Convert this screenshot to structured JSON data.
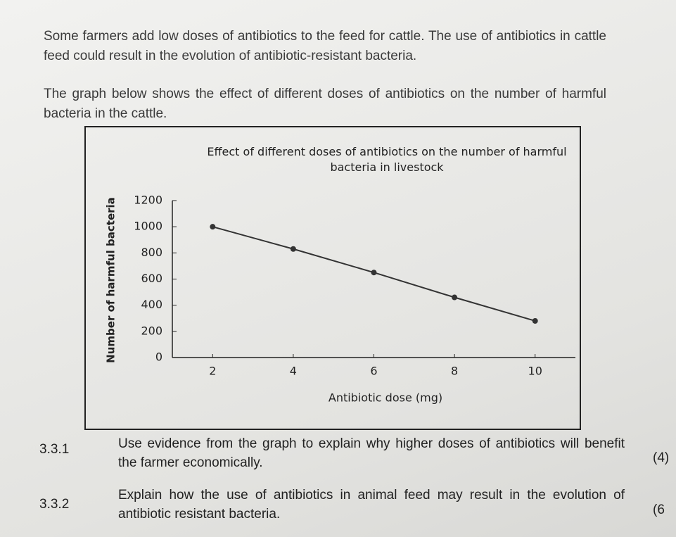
{
  "paragraphs": [
    "Some farmers add low doses of antibiotics to the feed for cattle. The use of antibiotics in cattle feed could result in the evolution of antibiotic-resistant bacteria.",
    "The graph below shows the effect of different doses of antibiotics on the number of harmful bacteria in the cattle."
  ],
  "chart_data": {
    "type": "line",
    "title": "Effect of different doses of antibiotics on the number of harmful bacteria in livestock",
    "x_label": "Antibiotic dose (mg)",
    "y_label": "Number of harmful bacteria",
    "x": [
      2,
      4,
      6,
      8,
      10
    ],
    "series": [
      {
        "name": "Harmful bacteria",
        "color": "#333333",
        "values": [
          1000,
          830,
          650,
          460,
          280
        ]
      }
    ],
    "xlim": [
      1,
      11
    ],
    "xticks": [
      2,
      4,
      6,
      8,
      10
    ],
    "ylim": [
      0,
      1200
    ],
    "yticks": [
      0,
      200,
      400,
      600,
      800,
      1000,
      1200
    ],
    "grid": false
  },
  "questions": [
    {
      "number": "3.3.1",
      "text": "Use evidence from the graph to explain why higher doses of antibiotics will benefit the farmer economically.",
      "marks": "(4)"
    },
    {
      "number": "3.3.2",
      "text": "Explain how the use of antibiotics in animal feed may result in the evolution of antibiotic resistant bacteria.",
      "marks": "(6"
    }
  ]
}
